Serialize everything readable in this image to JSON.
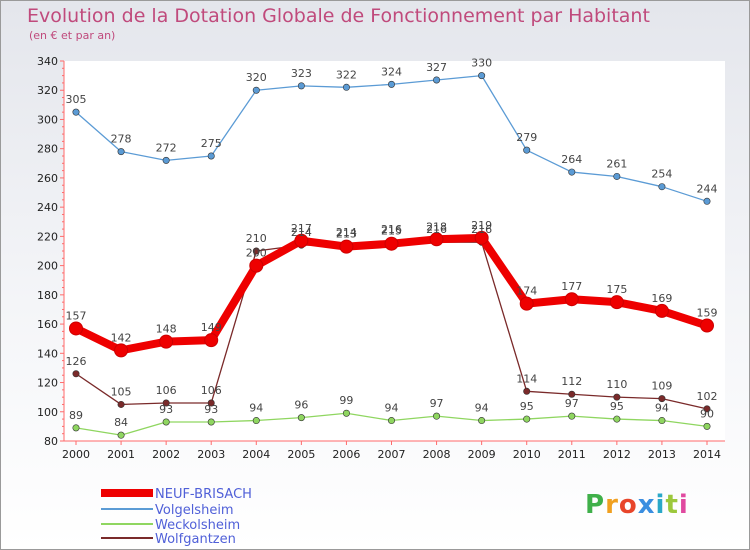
{
  "title": "Evolution de la Dotation Globale de Fonctionnement par Habitant",
  "subtitle": "(en € et par an)",
  "logo": {
    "letters": [
      "P",
      "r",
      "o",
      "x",
      "i",
      "t",
      "i"
    ],
    "colors": [
      "#3fb04a",
      "#f0a020",
      "#e8452a",
      "#3a8ee0",
      "#2aa8c8",
      "#9cc83c",
      "#e04aa0"
    ]
  },
  "chart_data": {
    "type": "line",
    "title": "Evolution de la Dotation Globale de Fonctionnement par Habitant",
    "subtitle": "(en € et par an)",
    "xlabel": "",
    "ylabel": "",
    "ylim": [
      80,
      340
    ],
    "yticks": [
      80,
      100,
      120,
      140,
      160,
      180,
      200,
      220,
      240,
      260,
      280,
      300,
      320,
      340
    ],
    "grid": false,
    "legend_position": "bottom-left",
    "categories": [
      "2000",
      "2001",
      "2002",
      "2003",
      "2004",
      "2005",
      "2006",
      "2007",
      "2008",
      "2009",
      "2010",
      "2011",
      "2012",
      "2013",
      "2014"
    ],
    "series": [
      {
        "name": "NEUF-BRISACH",
        "color": "#ee0000",
        "values": [
          157,
          142,
          148,
          149,
          200,
          217,
          213,
          215,
          218,
          219,
          174,
          177,
          175,
          169,
          159
        ]
      },
      {
        "name": "Volgelsheim",
        "color": "#5b9bd5",
        "values": [
          305,
          278,
          272,
          275,
          320,
          323,
          322,
          324,
          327,
          330,
          279,
          264,
          261,
          254,
          244
        ]
      },
      {
        "name": "Weckolsheim",
        "color": "#8fd660",
        "values": [
          89,
          84,
          93,
          93,
          94,
          96,
          99,
          94,
          97,
          94,
          95,
          97,
          95,
          94,
          90
        ]
      },
      {
        "name": "Wolfgantzen",
        "color": "#7a2a2a",
        "values": [
          126,
          105,
          106,
          106,
          210,
          214,
          214,
          216,
          216,
          216,
          114,
          112,
          110,
          109,
          102
        ]
      }
    ]
  }
}
